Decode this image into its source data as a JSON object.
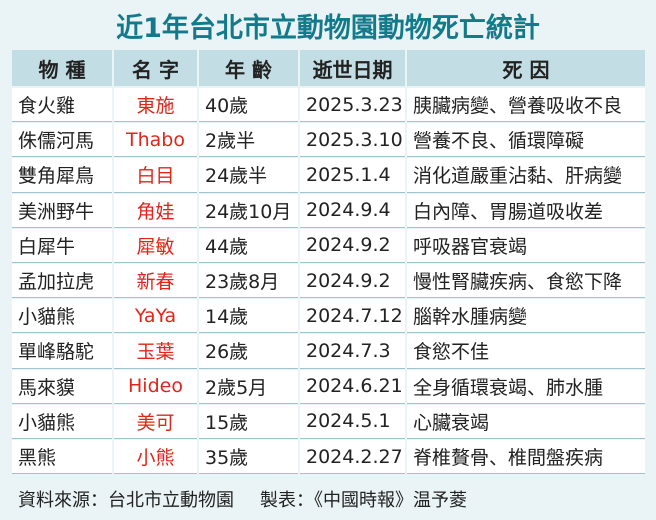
{
  "header": {
    "title": "近1年台北市立動物園動物死亡統計"
  },
  "table": {
    "columns": [
      "物 種",
      "名 字",
      "年 齡",
      "逝世日期",
      "死 因"
    ],
    "rows": [
      [
        "食火雞",
        "東施",
        "40歲",
        "2025.3.23",
        "胰臟病變、營養吸收不良"
      ],
      [
        "侏儒河馬",
        "Thabo",
        "2歲半",
        "2025.3.10",
        "營養不良、循環障礙"
      ],
      [
        "雙角犀鳥",
        "白目",
        "24歲半",
        "2025.1.4",
        "消化道嚴重沾黏、肝病變"
      ],
      [
        "美洲野牛",
        "角娃",
        "24歲10月",
        "2024.9.4",
        "白內障、胃腸道吸收差"
      ],
      [
        "白犀牛",
        "犀敏",
        "44歲",
        "2024.9.2",
        "呼吸器官衰竭"
      ],
      [
        "孟加拉虎",
        "新春",
        "23歲8月",
        "2024.9.2",
        "慢性腎臟疾病、食慾下降"
      ],
      [
        "小貓熊",
        "YaYa",
        "14歲",
        "2024.7.12",
        "腦幹水腫病變"
      ],
      [
        "單峰駱駝",
        "玉葉",
        "26歲",
        "2024.7.3",
        "食慾不佳"
      ],
      [
        "馬來貘",
        "Hideo",
        "2歲5月",
        "2024.6.21",
        "全身循環衰竭、肺水腫"
      ],
      [
        "小貓熊",
        "美可",
        "15歲",
        "2024.5.1",
        "心臟衰竭"
      ],
      [
        "黑熊",
        "小熊",
        "35歲",
        "2024.2.27",
        "脊椎贅骨、椎間盤疾病"
      ]
    ]
  },
  "footer": {
    "source": "資料來源：台北市立動物園",
    "maker": "製表：《中國時報》温予菱"
  }
}
